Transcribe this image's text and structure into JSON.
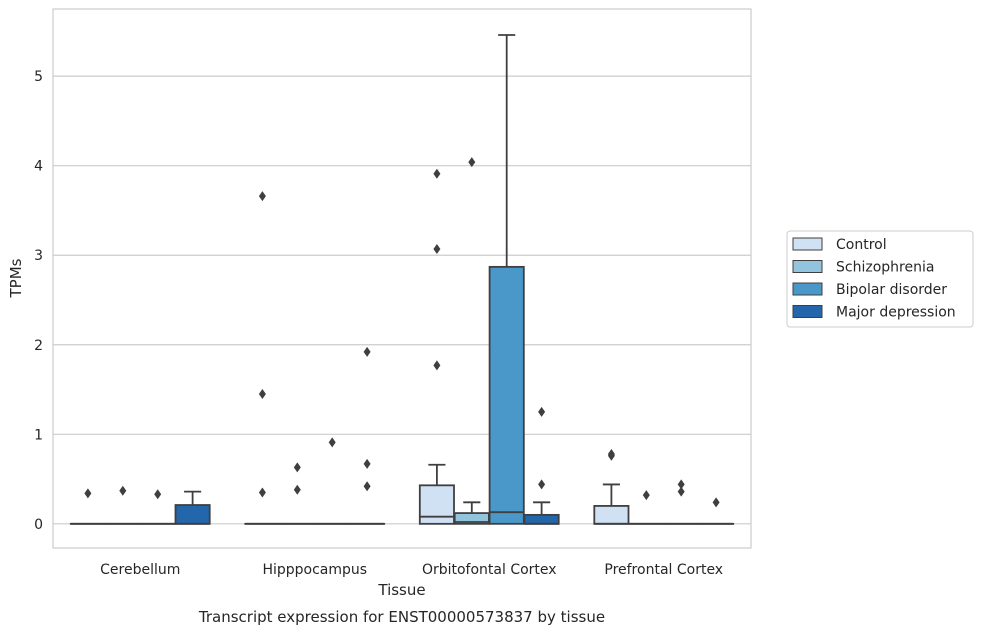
{
  "chart_data": {
    "type": "box",
    "title": "Transcript expression for ENST00000573837 by tissue",
    "xlabel": "Tissue",
    "ylabel": "TPMs",
    "ylim": [
      -0.27,
      5.75
    ],
    "yticks": [
      0,
      1,
      2,
      3,
      4,
      5
    ],
    "grid": true,
    "legend_placement": "right",
    "categories": [
      "Cerebellum",
      "Hipppocampus",
      "Orbitofontal Cortex",
      "Prefrontal Cortex"
    ],
    "series": [
      {
        "name": "Control",
        "color": "#cfe1f2",
        "boxes": [
          {
            "q1": 0,
            "median": 0,
            "q3": 0,
            "whislo": 0,
            "whishi": 0,
            "fliers": [
              0.34
            ]
          },
          {
            "q1": 0,
            "median": 0,
            "q3": 0,
            "whislo": 0,
            "whishi": 0,
            "fliers": [
              3.66,
              1.45,
              0.35
            ]
          },
          {
            "q1": 0,
            "median": 0.08,
            "q3": 0.43,
            "whislo": 0,
            "whishi": 0.66,
            "fliers": [
              3.91,
              3.07,
              1.77
            ]
          },
          {
            "q1": 0,
            "median": 0,
            "q3": 0.2,
            "whislo": 0,
            "whishi": 0.44,
            "fliers": [
              0.78,
              0.76
            ]
          }
        ]
      },
      {
        "name": "Schizophrenia",
        "color": "#93c4de",
        "boxes": [
          {
            "q1": 0,
            "median": 0,
            "q3": 0,
            "whislo": 0,
            "whishi": 0,
            "fliers": [
              0.37
            ]
          },
          {
            "q1": 0,
            "median": 0,
            "q3": 0,
            "whislo": 0,
            "whishi": 0,
            "fliers": [
              0.63,
              0.38
            ]
          },
          {
            "q1": 0,
            "median": 0.02,
            "q3": 0.12,
            "whislo": 0,
            "whishi": 0.24,
            "fliers": [
              4.04
            ]
          },
          {
            "q1": 0,
            "median": 0,
            "q3": 0,
            "whislo": 0,
            "whishi": 0,
            "fliers": [
              0.32
            ]
          }
        ]
      },
      {
        "name": "Bipolar disorder",
        "color": "#4a98c9",
        "boxes": [
          {
            "q1": 0,
            "median": 0,
            "q3": 0,
            "whislo": 0,
            "whishi": 0,
            "fliers": [
              0.33
            ]
          },
          {
            "q1": 0,
            "median": 0,
            "q3": 0,
            "whislo": 0,
            "whishi": 0,
            "fliers": [
              0.91
            ]
          },
          {
            "q1": 0,
            "median": 0.13,
            "q3": 2.87,
            "whislo": 0,
            "whishi": 5.46,
            "fliers": []
          },
          {
            "q1": 0,
            "median": 0,
            "q3": 0,
            "whislo": 0,
            "whishi": 0,
            "fliers": [
              0.44,
              0.36
            ]
          }
        ]
      },
      {
        "name": "Major depression",
        "color": "#2366ab",
        "boxes": [
          {
            "q1": 0,
            "median": 0,
            "q3": 0.21,
            "whislo": 0,
            "whishi": 0.36,
            "fliers": []
          },
          {
            "q1": 0,
            "median": 0,
            "q3": 0,
            "whislo": 0,
            "whishi": 0,
            "fliers": [
              1.92,
              0.67,
              0.42
            ]
          },
          {
            "q1": 0,
            "median": 0,
            "q3": 0.1,
            "whislo": 0,
            "whishi": 0.24,
            "fliers": [
              1.25,
              0.44
            ]
          },
          {
            "q1": 0,
            "median": 0,
            "q3": 0,
            "whislo": 0,
            "whishi": 0,
            "fliers": [
              0.24
            ]
          }
        ]
      }
    ]
  }
}
